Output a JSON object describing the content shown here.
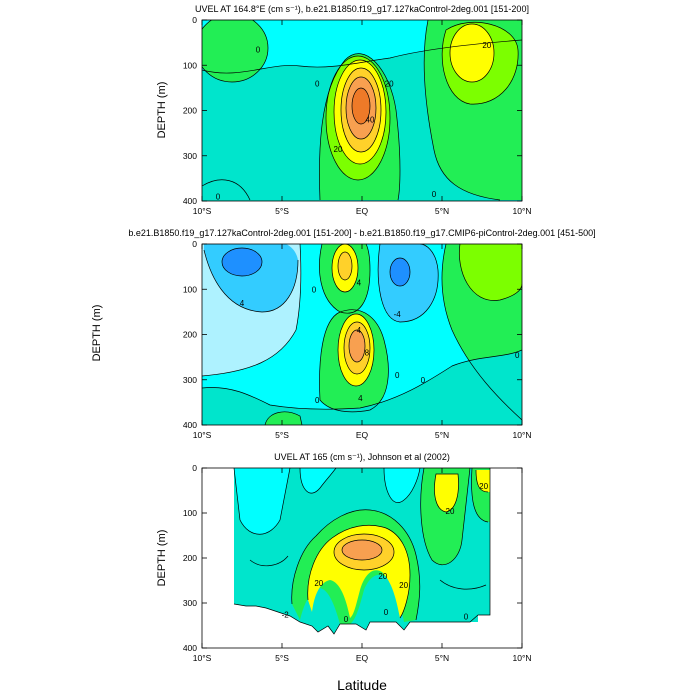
{
  "figure": {
    "xlabel": "Latitude",
    "left_ylabel": "DEPTH (m)"
  },
  "colors": {
    "lightblue": "#aef2ff",
    "cyan": "#00ffff",
    "teal": "#00e5cc",
    "green": "#22ee55",
    "lime": "#7cff00",
    "yellow": "#ffff00",
    "gold": "#ffd12a",
    "orange": "#f8a050",
    "darkorange": "#ee7a28",
    "blue": "#1e90ff",
    "aqua": "#33ccff"
  },
  "chart_data": [
    {
      "type": "heatmap",
      "title": "UVEL AT 164.8°E (cm s⁻¹), b.e21.B1850.f19_g17.127kaControl-2deg.001 [151-200]",
      "ylabel": "DEPTH (m)",
      "xlim": [
        -10,
        10
      ],
      "ylim": [
        400,
        0
      ],
      "xticks": [
        -10,
        -5,
        0,
        5,
        10
      ],
      "xtick_labels": [
        "10°S",
        "5°S",
        "EQ",
        "5°N",
        "10°N"
      ],
      "yticks": [
        0,
        100,
        200,
        300,
        400
      ],
      "ytick_labels": [
        "0",
        "100",
        "200",
        "300",
        "400"
      ],
      "background": "teal",
      "features": [
        {
          "lat": -7.5,
          "depth": 60,
          "rlat": 2.8,
          "rdep": 80,
          "amp": 12,
          "base": "green"
        },
        {
          "lat": 7.2,
          "depth": 80,
          "rlat": 2.5,
          "rdep": 110,
          "amp": 28,
          "base": "green"
        },
        {
          "lat": -0.5,
          "depth": 190,
          "rlat": 2.3,
          "rdep": 140,
          "amp": 60,
          "base": "green"
        }
      ],
      "contour_labels": [
        {
          "lat": -6.5,
          "depth": 65,
          "text": "0"
        },
        {
          "lat": 7.8,
          "depth": 55,
          "text": "20"
        },
        {
          "lat": -2.8,
          "depth": 140,
          "text": "0"
        },
        {
          "lat": 1.7,
          "depth": 140,
          "text": "20"
        },
        {
          "lat": 0.5,
          "depth": 220,
          "text": "40"
        },
        {
          "lat": -1.5,
          "depth": 285,
          "text": "20"
        },
        {
          "lat": 4.5,
          "depth": 385,
          "text": "0"
        },
        {
          "lat": -9,
          "depth": 390,
          "text": "0"
        }
      ]
    },
    {
      "type": "heatmap",
      "title": "b.e21.B1850.f19_g17.127kaControl-2deg.001 [151-200] - b.e21.B1850.f19_g17.CMIP6-piControl-2deg.001 [451-500]",
      "ylabel": "DEPTH (m)",
      "xlim": [
        -10,
        10
      ],
      "ylim": [
        400,
        0
      ],
      "xticks": [
        -10,
        -5,
        0,
        5,
        10
      ],
      "xtick_labels": [
        "10°S",
        "5°S",
        "EQ",
        "5°N",
        "10°N"
      ],
      "yticks": [
        0,
        100,
        200,
        300,
        400
      ],
      "ytick_labels": [
        "0",
        "100",
        "200",
        "300",
        "400"
      ],
      "background": "cyan",
      "contour_labels": [
        {
          "lat": -7.5,
          "depth": 130,
          "text": "4"
        },
        {
          "lat": -3,
          "depth": 100,
          "text": "0"
        },
        {
          "lat": -0.2,
          "depth": 85,
          "text": "4"
        },
        {
          "lat": -0.2,
          "depth": 190,
          "text": "4"
        },
        {
          "lat": 0.3,
          "depth": 240,
          "text": "8"
        },
        {
          "lat": -0.1,
          "depth": 340,
          "text": "4"
        },
        {
          "lat": -2.8,
          "depth": 345,
          "text": "0"
        },
        {
          "lat": 2.2,
          "depth": 290,
          "text": "0"
        },
        {
          "lat": 3.8,
          "depth": 300,
          "text": "0"
        },
        {
          "lat": 2.2,
          "depth": 155,
          "text": "-4"
        },
        {
          "lat": 9.7,
          "depth": 245,
          "text": "0"
        }
      ]
    },
    {
      "type": "heatmap",
      "title": "UVEL AT 165 (cm s⁻¹), Johnson et al (2002)",
      "ylabel": "DEPTH (m)",
      "xlim": [
        -10,
        10
      ],
      "ylim": [
        400,
        0
      ],
      "xticks": [
        -10,
        -5,
        0,
        5,
        10
      ],
      "xtick_labels": [
        "10°S",
        "5°S",
        "EQ",
        "5°N",
        "10°N"
      ],
      "yticks": [
        0,
        100,
        200,
        300,
        400
      ],
      "ytick_labels": [
        "0",
        "100",
        "200",
        "300",
        "400"
      ],
      "data_extent_lat": [
        -8,
        8
      ],
      "background": "teal",
      "contour_labels": [
        {
          "lat": 7.6,
          "depth": 40,
          "text": "20"
        },
        {
          "lat": 5.5,
          "depth": 95,
          "text": "20"
        },
        {
          "lat": 1.3,
          "depth": 240,
          "text": "20"
        },
        {
          "lat": -2.7,
          "depth": 255,
          "text": "20"
        },
        {
          "lat": 2.6,
          "depth": 260,
          "text": "20"
        },
        {
          "lat": -1,
          "depth": 335,
          "text": "0"
        },
        {
          "lat": 1.5,
          "depth": 320,
          "text": "0"
        },
        {
          "lat": 6.5,
          "depth": 330,
          "text": "0"
        },
        {
          "lat": -4.8,
          "depth": 325,
          "text": "-2"
        }
      ]
    }
  ]
}
